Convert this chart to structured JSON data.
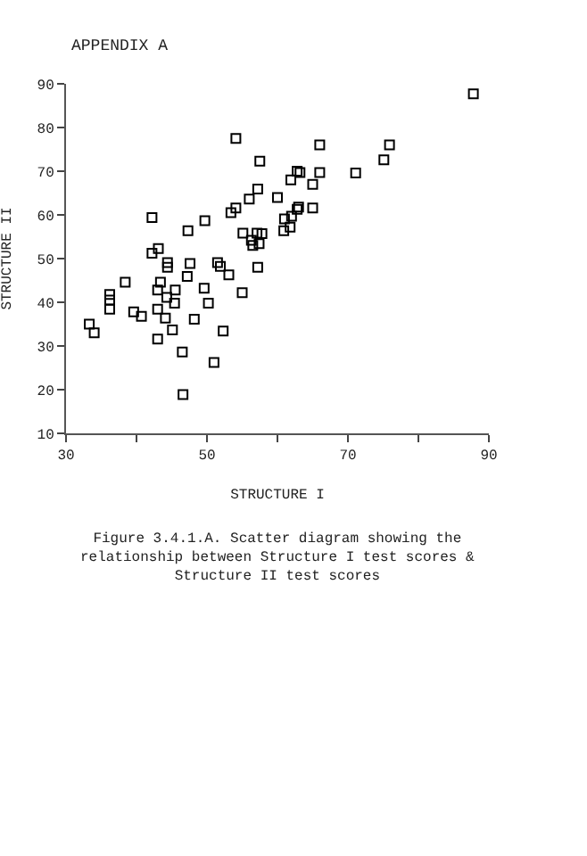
{
  "chart_data": {
    "type": "scatter",
    "title": "APPENDIX A",
    "xlabel": "STRUCTURE I",
    "ylabel": "STRUCTURE II",
    "annotations": [
      "Figure 3.4.1.A. Scatter diagram showing the relationship between Structure I test scores & Structure II test scores"
    ],
    "x": [
      87.8,
      54.1,
      66,
      75.9,
      75.1,
      57.5,
      71.1,
      62.8,
      63.2,
      66,
      61.9,
      65,
      57.2,
      56,
      60,
      54.1,
      53.4,
      62.8,
      63,
      65,
      62,
      61,
      61.8,
      60.9,
      49.7,
      42.2,
      47.3,
      55.1,
      57.1,
      57.8,
      56.3,
      57.4,
      56.5,
      42.2,
      43.1,
      47.6,
      51.5,
      44.4,
      44.4,
      51.9,
      53.1,
      57.2,
      55,
      38.4,
      36.2,
      36.2,
      36.2,
      33.3,
      34,
      43.4,
      43,
      44.3,
      45.5,
      45.4,
      47.2,
      49.6,
      50.2,
      39.6,
      40.7,
      43,
      44.1,
      45.1,
      43,
      48.2,
      52.3,
      46.5,
      51,
      46.6
    ],
    "series": [
      {
        "color": "#000000",
        "values": [
          87.7,
          77.5,
          76,
          76,
          72.6,
          72.3,
          69.6,
          70,
          69.7,
          69.7,
          68,
          67,
          65.9,
          63.6,
          64,
          61.6,
          60.5,
          61.3,
          61.8,
          61.6,
          59.7,
          59.1,
          57.2,
          56.4,
          58.7,
          59.4,
          56.4,
          55.8,
          55.8,
          55.7,
          54.2,
          53.4,
          53,
          51.2,
          52.3,
          48.9,
          49.1,
          49.1,
          48,
          48.2,
          46.3,
          48,
          42.2,
          44.6,
          41.8,
          40.5,
          38.4,
          35,
          33,
          44.6,
          42.8,
          41.1,
          42.8,
          39.8,
          45.9,
          43.2,
          39.8,
          37.8,
          36.8,
          38.4,
          36.4,
          33.7,
          31.6,
          36.1,
          33.4,
          28.6,
          26.2,
          18.9
        ]
      }
    ],
    "xlim": [
      30,
      90
    ],
    "xticks": [
      30,
      {
        "value": 40,
        "label": null
      },
      50,
      {
        "value": 60,
        "label": null
      },
      70,
      {
        "value": 80,
        "label": null
      },
      90
    ],
    "ylim": [
      10,
      90
    ],
    "yticks": [
      10,
      20,
      30,
      40,
      50,
      60,
      70,
      80,
      90
    ],
    "marker": "square",
    "grid": false,
    "legend": false
  }
}
